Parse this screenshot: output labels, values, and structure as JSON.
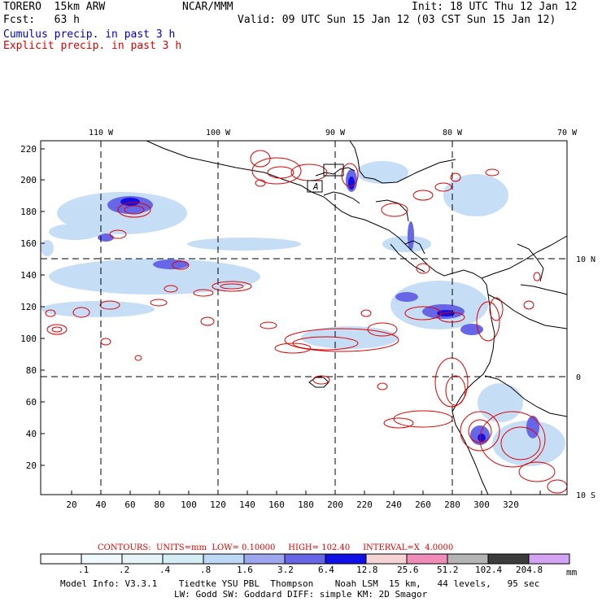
{
  "header": {
    "model": "TORERO  15km ARW",
    "org": "NCAR/MMM",
    "init": "Init: 18 UTC Thu 12 Jan 12",
    "fcst_label": "Fcst:   63 h",
    "valid": "Valid: 09 UTC Sun 15 Jan 12 (03 CST Sun 15 Jan 12)",
    "cumulus_label": "Cumulus precip. in past 3 h",
    "explicit_label": "Explicit precip. in past 3 h"
  },
  "map": {
    "lon_labels": [
      "110 W",
      "100 W",
      "90 W",
      "80 W",
      "70 W"
    ],
    "lat_labels": [
      "10 N",
      "0",
      "10 S"
    ],
    "y_ticks": [
      "220",
      "200",
      "180",
      "160",
      "140",
      "120",
      "100",
      "80",
      "60",
      "40",
      "20"
    ],
    "x_ticks": [
      "20",
      "40",
      "60",
      "80",
      "100",
      "120",
      "140",
      "160",
      "180",
      "200",
      "220",
      "240",
      "260",
      "280",
      "300",
      "320"
    ],
    "station_label": "A",
    "colors": {
      "cumulus": "#0000cc",
      "explicit": "#e00000",
      "land": "#000000",
      "grid": "#000000"
    }
  },
  "contours_info": {
    "text": "CONTOURS:  UNITS=mm  LOW= 0.10000     HIGH= 102.40     INTERVAL=X  4.0000"
  },
  "colorbar": {
    "labels": [
      ".1",
      ".2",
      ".4",
      ".8",
      "1.6",
      "3.2",
      "6.4",
      "12.8",
      "25.6",
      "51.2",
      "102.4",
      "204.8"
    ],
    "unit": "mm",
    "colors": [
      "#ffffff",
      "#f0f8ff",
      "#e4f4f8",
      "#d4ecf4",
      "#bcd8f4",
      "#9ea6ee",
      "#6666e6",
      "#1010e6",
      "#f4d4d4",
      "#f08cb8",
      "#b4b4b4",
      "#3c3c3c",
      "#d4a4f4"
    ]
  },
  "footer": {
    "line1": "Model Info: V3.3.1    Tiedtke YSU PBL  Thompson    Noah LSM  15 km,   44 levels,   95 sec",
    "line2": "LW: Godd SW: Goddard DIFF: simple KM: 2D Smagor"
  }
}
